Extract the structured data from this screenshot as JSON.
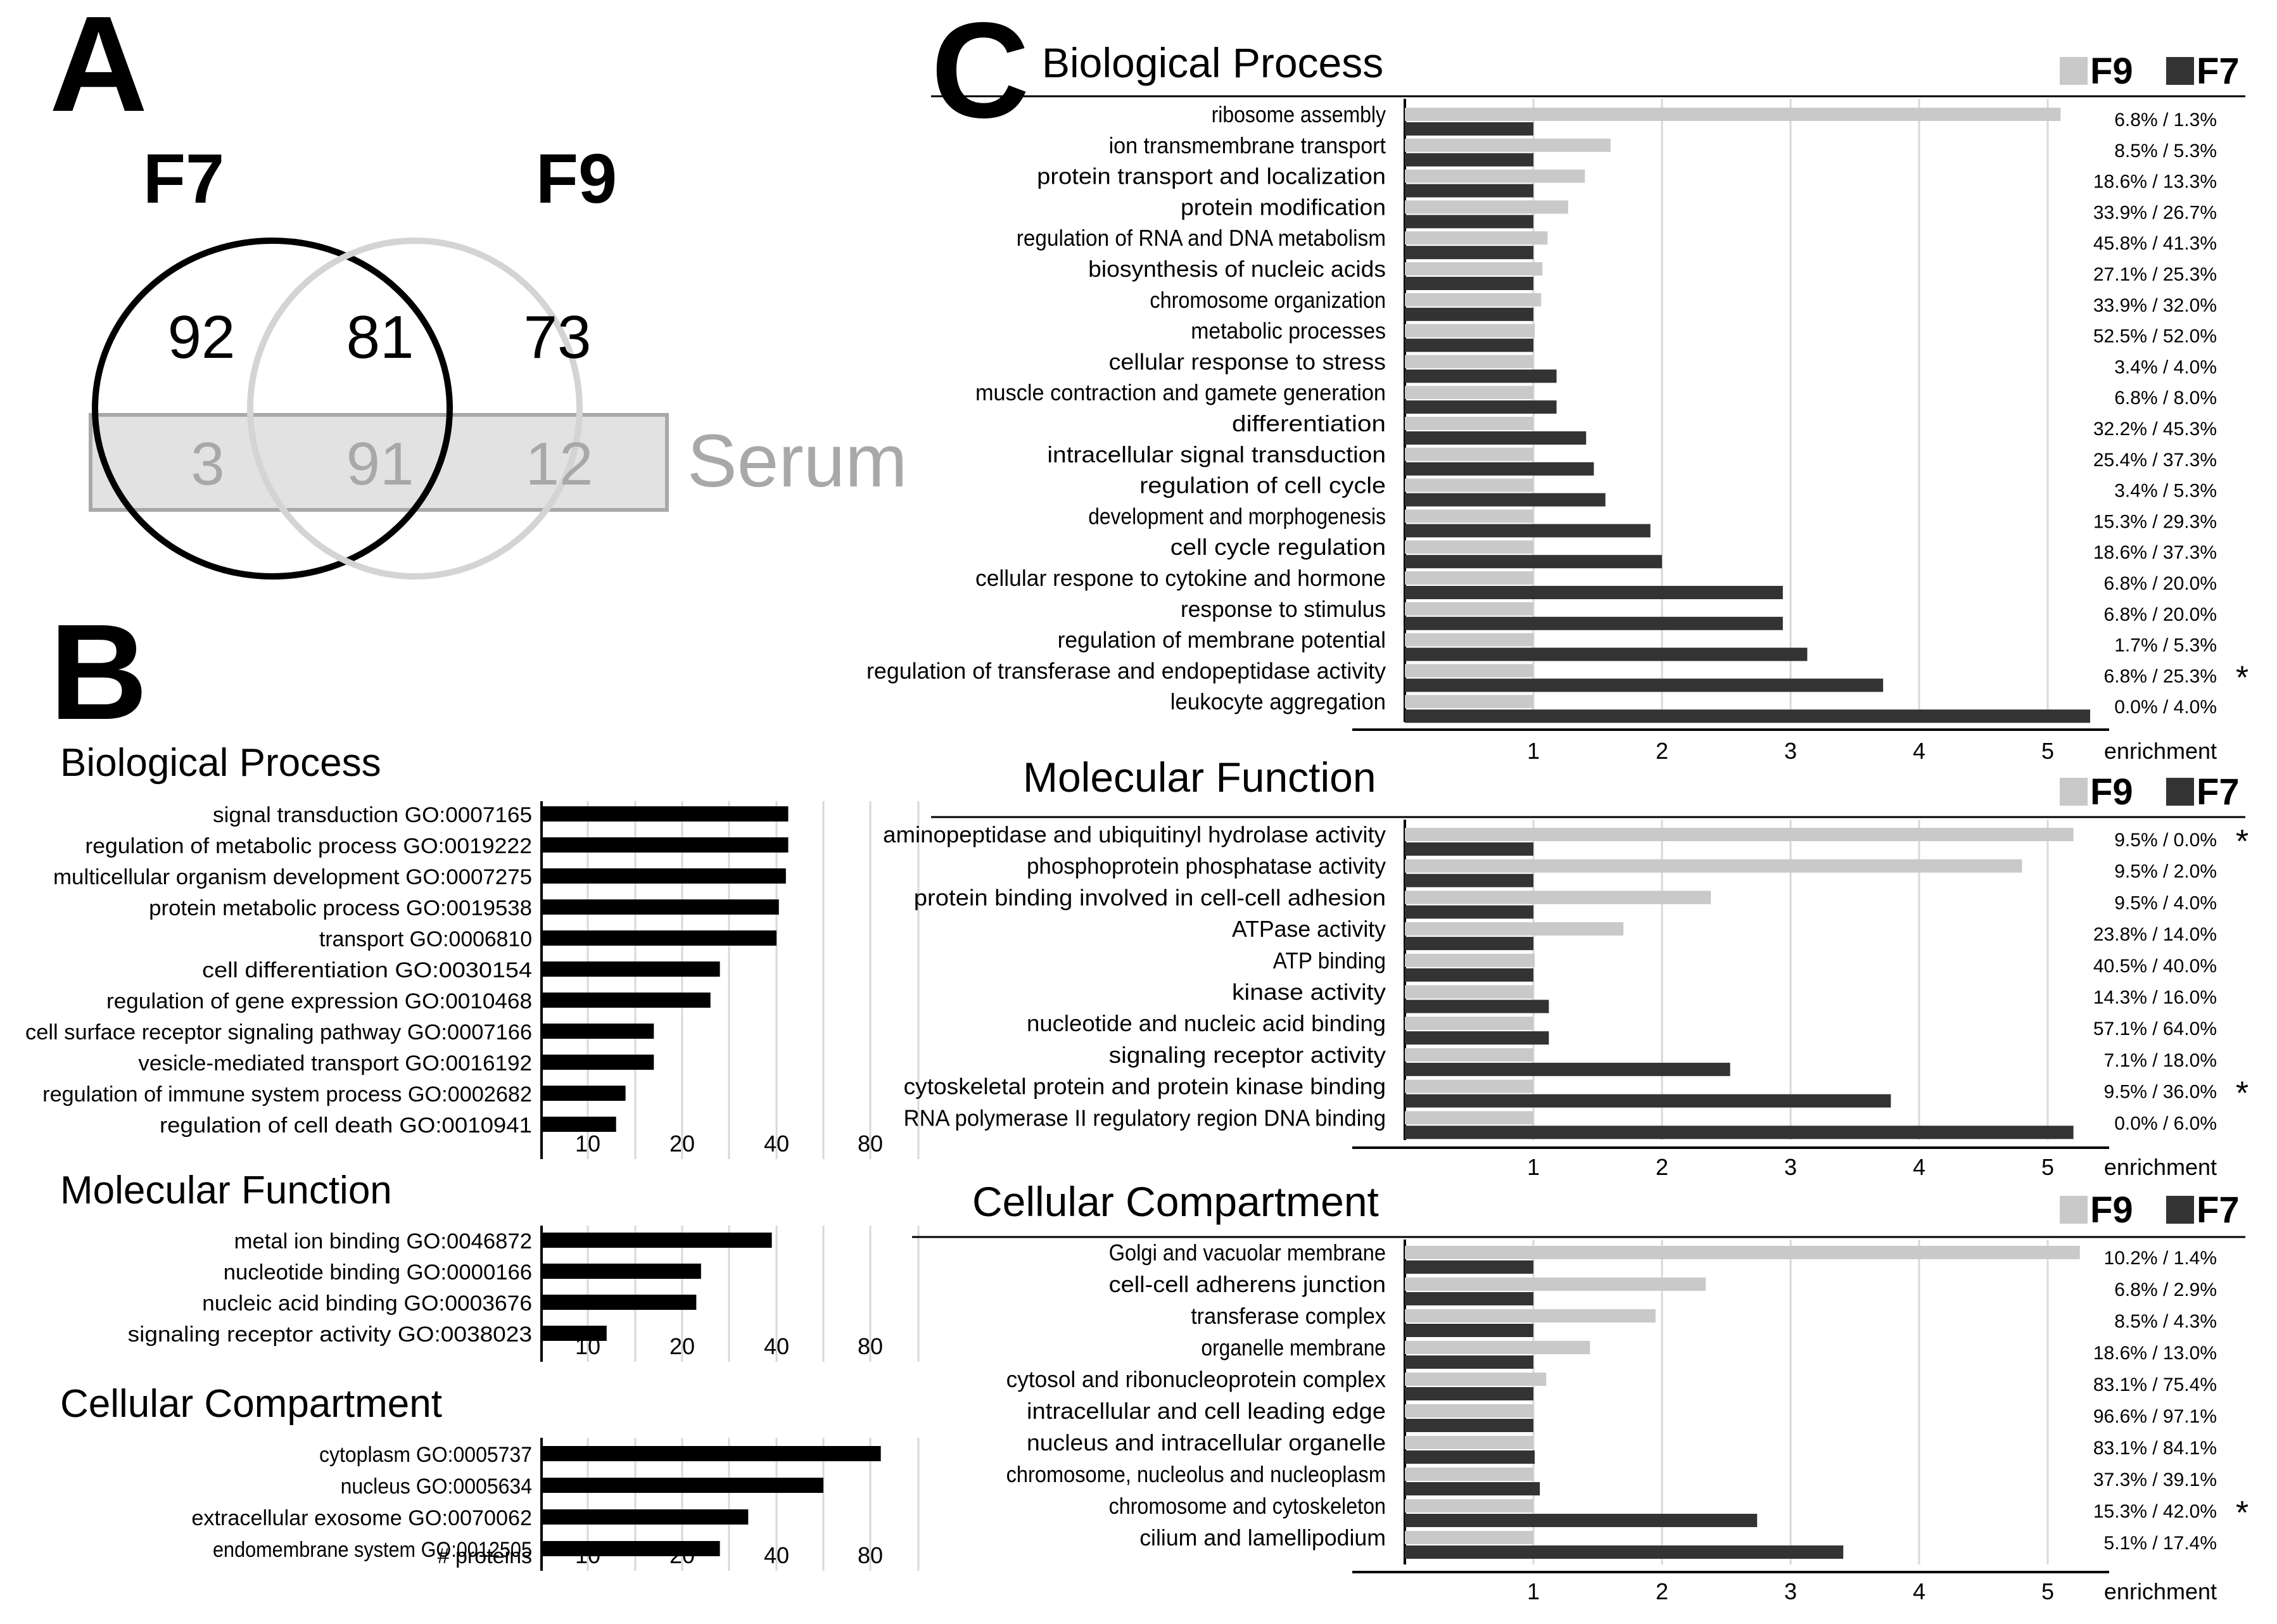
{
  "panel_letters": {
    "a": "A",
    "b": "B",
    "c": "C"
  },
  "venn": {
    "f7_label": "F7",
    "f9_label": "F9",
    "serum_label": "Serum",
    "counts": {
      "f7_only": "92",
      "f7_f9": "81",
      "f9_only": "73",
      "f7_serum": "3",
      "all_three": "91",
      "f9_serum": "12"
    }
  },
  "colors": {
    "f9_bar": "#c9c9c9",
    "f7_bar": "#333333",
    "black_bar": "#000000",
    "grid": "#d8d8d8",
    "venn_gray": "#d6d6d6",
    "serum_box": "#e2e2e2"
  },
  "legend": {
    "f9": "F9",
    "f7": "F7"
  },
  "chart_data": [
    {
      "id": "B_bp",
      "panel": "B",
      "type": "bar",
      "orientation": "horizontal",
      "title": "Biological Process",
      "xlabel": "",
      "xscale": "nonlinear",
      "xticks": [
        "10",
        "20",
        "40",
        "80"
      ],
      "categories": [
        "signal transduction GO:0007165",
        "regulation of metabolic process GO:0019222",
        "multicellular organism development GO:0007275",
        "protein metabolic process GO:0019538",
        "transport GO:0006810",
        "cell differentiation GO:0030154",
        "regulation of gene expression GO:0010468",
        "cell surface receptor signaling pathway GO:0007166",
        "vesicle-mediated transport GO:0016192",
        "regulation of immune system process GO:0002682",
        "regulation of cell death GO:0010941"
      ],
      "values": [
        45,
        45,
        44,
        41,
        40,
        28,
        26,
        17,
        17,
        14,
        13
      ]
    },
    {
      "id": "B_mf",
      "panel": "B",
      "type": "bar",
      "orientation": "horizontal",
      "title": "Molecular Function",
      "xlabel": "",
      "xscale": "nonlinear",
      "xticks": [
        "10",
        "20",
        "40",
        "80"
      ],
      "categories": [
        "metal ion binding GO:0046872",
        "nucleotide binding GO:0000166",
        "nucleic acid binding GO:0003676",
        "signaling receptor activity GO:0038023"
      ],
      "values": [
        39,
        24,
        23,
        12
      ]
    },
    {
      "id": "B_cc",
      "panel": "B",
      "type": "bar",
      "orientation": "horizontal",
      "title": "Cellular Compartment",
      "xlabel": "# proteins",
      "xscale": "nonlinear",
      "xticks": [
        "10",
        "20",
        "40",
        "80"
      ],
      "categories": [
        "cytoplasm GO:0005737",
        "nucleus GO:0005634",
        "extracellular exosome GO:0070062",
        "endomembrane system GO:0012505"
      ],
      "values": [
        89,
        60,
        34,
        28
      ]
    },
    {
      "id": "C_bp",
      "panel": "C",
      "type": "bar",
      "orientation": "horizontal",
      "title": "Biological Process",
      "xlabel": "enrichment",
      "xlim": [
        0,
        5.5
      ],
      "xticks": [
        "1",
        "2",
        "3",
        "4",
        "5"
      ],
      "categories": [
        "ribosome assembly",
        "ion transmembrane transport",
        "protein transport and localization",
        "protein modification",
        "regulation of RNA and DNA metabolism",
        "biosynthesis of nucleic acids",
        "chromosome organization",
        "metabolic processes",
        "cellular response to stress",
        "muscle contraction and gamete generation",
        "differentiation",
        "intracellular signal transduction",
        "regulation of cell cycle",
        "development and morphogenesis",
        "cell cycle regulation",
        "cellular respone to cytokine and hormone",
        "response to stimulus",
        "regulation of membrane potential",
        "regulation of transferase and endopeptidase activity",
        "leukocyte aggregation"
      ],
      "series": [
        {
          "name": "F9",
          "values": [
            5.1,
            1.6,
            1.4,
            1.27,
            1.11,
            1.07,
            1.06,
            1.01,
            1.0,
            1.0,
            1.0,
            1.0,
            1.0,
            1.0,
            1.0,
            1.0,
            1.0,
            1.0,
            1.0,
            1.0
          ]
        },
        {
          "name": "F7",
          "values": [
            1.0,
            1.0,
            1.0,
            1.0,
            1.0,
            1.0,
            1.0,
            1.0,
            1.18,
            1.18,
            1.41,
            1.47,
            1.56,
            1.91,
            2.0,
            2.94,
            2.94,
            3.13,
            3.72,
            5.33
          ]
        }
      ],
      "percentages": [
        "6.8% / 1.3%",
        "8.5% / 5.3%",
        "18.6% / 13.3%",
        "33.9% / 26.7%",
        "45.8% / 41.3%",
        "27.1% / 25.3%",
        "33.9% / 32.0%",
        "52.5% / 52.0%",
        "3.4% / 4.0%",
        "6.8% / 8.0%",
        "32.2% / 45.3%",
        "25.4% / 37.3%",
        "3.4% / 5.3%",
        "15.3% / 29.3%",
        "18.6% / 37.3%",
        "6.8% / 20.0%",
        "6.8% / 20.0%",
        "1.7% / 5.3%",
        "6.8% / 25.3%",
        "0.0% / 4.0%"
      ],
      "stars": [
        "",
        "",
        "",
        "",
        "",
        "",
        "",
        "",
        "",
        "",
        "",
        "",
        "",
        "",
        "",
        "",
        "",
        "",
        "*",
        ""
      ]
    },
    {
      "id": "C_mf",
      "panel": "C",
      "type": "bar",
      "orientation": "horizontal",
      "title": "Molecular Function",
      "xlabel": "enrichment",
      "xlim": [
        0,
        5.5
      ],
      "xticks": [
        "1",
        "2",
        "3",
        "4",
        "5"
      ],
      "categories": [
        "aminopeptidase and ubiquitinyl hydrolase activity",
        "phosphoprotein phosphatase activity",
        "protein binding involved in cell-cell adhesion",
        "ATPase activity",
        "ATP binding",
        "kinase activity",
        "nucleotide and nucleic acid binding",
        "signaling receptor activity",
        "cytoskeletal protein and protein kinase binding",
        "RNA polymerase II regulatory region DNA binding"
      ],
      "series": [
        {
          "name": "F9",
          "values": [
            5.2,
            4.8,
            2.38,
            1.7,
            1.01,
            1.0,
            1.0,
            1.0,
            1.0,
            1.0
          ]
        },
        {
          "name": "F7",
          "values": [
            1.0,
            1.0,
            1.0,
            1.0,
            1.0,
            1.12,
            1.12,
            2.53,
            3.78,
            5.2
          ]
        }
      ],
      "percentages": [
        "9.5% / 0.0%",
        "9.5% / 2.0%",
        "9.5% / 4.0%",
        "23.8% / 14.0%",
        "40.5% / 40.0%",
        "14.3% / 16.0%",
        "57.1% / 64.0%",
        "7.1% / 18.0%",
        "9.5% / 36.0%",
        "0.0% / 6.0%"
      ],
      "stars": [
        "*",
        "",
        "",
        "",
        "",
        "",
        "",
        "",
        "*",
        ""
      ]
    },
    {
      "id": "C_cc",
      "panel": "C",
      "type": "bar",
      "orientation": "horizontal",
      "title": "Cellular Compartment",
      "xlabel": "enrichment",
      "xlim": [
        0,
        5.5
      ],
      "xticks": [
        "1",
        "2",
        "3",
        "4",
        "5"
      ],
      "categories": [
        "Golgi and vacuolar membrane",
        "cell-cell adherens junction",
        "transferase complex",
        "organelle membrane",
        "cytosol and ribonucleoprotein complex",
        "intracellular and cell leading edge",
        "nucleus and intracellular organelle",
        "chromosome, nucleolus and nucleoplasm",
        "chromosome and cytoskeleton",
        "cilium and lamellipodium"
      ],
      "series": [
        {
          "name": "F9",
          "values": [
            5.25,
            2.34,
            1.95,
            1.44,
            1.1,
            1.0,
            1.0,
            1.0,
            1.0,
            1.0
          ]
        },
        {
          "name": "F7",
          "values": [
            1.0,
            1.0,
            1.0,
            1.0,
            1.0,
            1.0,
            1.01,
            1.05,
            2.74,
            3.41
          ]
        }
      ],
      "percentages": [
        "10.2% / 1.4%",
        "6.8% / 2.9%",
        "8.5% / 4.3%",
        "18.6% / 13.0%",
        "83.1% / 75.4%",
        "96.6% / 97.1%",
        "83.1% / 84.1%",
        "37.3% / 39.1%",
        "15.3% / 42.0%",
        "5.1% / 17.4%"
      ],
      "stars": [
        "",
        "",
        "",
        "",
        "",
        "",
        "",
        "",
        "*",
        ""
      ]
    }
  ]
}
